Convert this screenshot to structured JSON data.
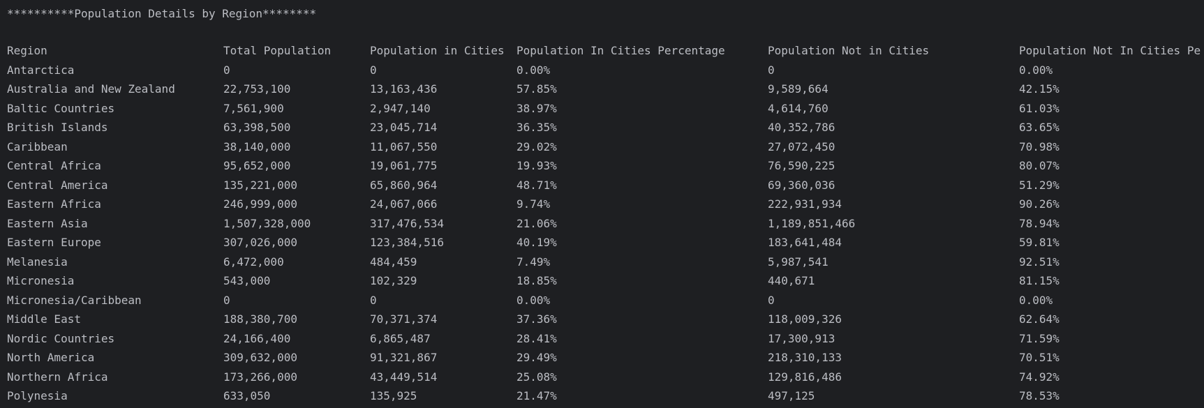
{
  "console": {
    "title": "**********Population Details by Region********",
    "headers": [
      "Region",
      "Total Population",
      "Population in Cities",
      "Population In Cities Percentage",
      "Population Not in Cities",
      "Population Not In Cities Pe"
    ],
    "rows": [
      [
        "Antarctica",
        "0",
        "0",
        "0.00%",
        "0",
        "0.00%"
      ],
      [
        "Australia and New Zealand",
        "22,753,100",
        "13,163,436",
        "57.85%",
        "9,589,664",
        "42.15%"
      ],
      [
        "Baltic Countries",
        "7,561,900",
        "2,947,140",
        "38.97%",
        "4,614,760",
        "61.03%"
      ],
      [
        "British Islands",
        "63,398,500",
        "23,045,714",
        "36.35%",
        "40,352,786",
        "63.65%"
      ],
      [
        "Caribbean",
        "38,140,000",
        "11,067,550",
        "29.02%",
        "27,072,450",
        "70.98%"
      ],
      [
        "Central Africa",
        "95,652,000",
        "19,061,775",
        "19.93%",
        "76,590,225",
        "80.07%"
      ],
      [
        "Central America",
        "135,221,000",
        "65,860,964",
        "48.71%",
        "69,360,036",
        "51.29%"
      ],
      [
        "Eastern Africa",
        "246,999,000",
        "24,067,066",
        "9.74%",
        "222,931,934",
        "90.26%"
      ],
      [
        "Eastern Asia",
        "1,507,328,000",
        "317,476,534",
        "21.06%",
        "1,189,851,466",
        "78.94%"
      ],
      [
        "Eastern Europe",
        "307,026,000",
        "123,384,516",
        "40.19%",
        "183,641,484",
        "59.81%"
      ],
      [
        "Melanesia",
        "6,472,000",
        "484,459",
        "7.49%",
        "5,987,541",
        "92.51%"
      ],
      [
        "Micronesia",
        "543,000",
        "102,329",
        "18.85%",
        "440,671",
        "81.15%"
      ],
      [
        "Micronesia/Caribbean",
        "0",
        "0",
        "0.00%",
        "0",
        "0.00%"
      ],
      [
        "Middle East",
        "188,380,700",
        "70,371,374",
        "37.36%",
        "118,009,326",
        "62.64%"
      ],
      [
        "Nordic Countries",
        "24,166,400",
        "6,865,487",
        "28.41%",
        "17,300,913",
        "71.59%"
      ],
      [
        "North America",
        "309,632,000",
        "91,321,867",
        "29.49%",
        "218,310,133",
        "70.51%"
      ],
      [
        "Northern Africa",
        "173,266,000",
        "43,449,514",
        "25.08%",
        "129,816,486",
        "74.92%"
      ],
      [
        "Polynesia",
        "633,050",
        "135,925",
        "21.47%",
        "497,125",
        "78.53%"
      ]
    ]
  }
}
